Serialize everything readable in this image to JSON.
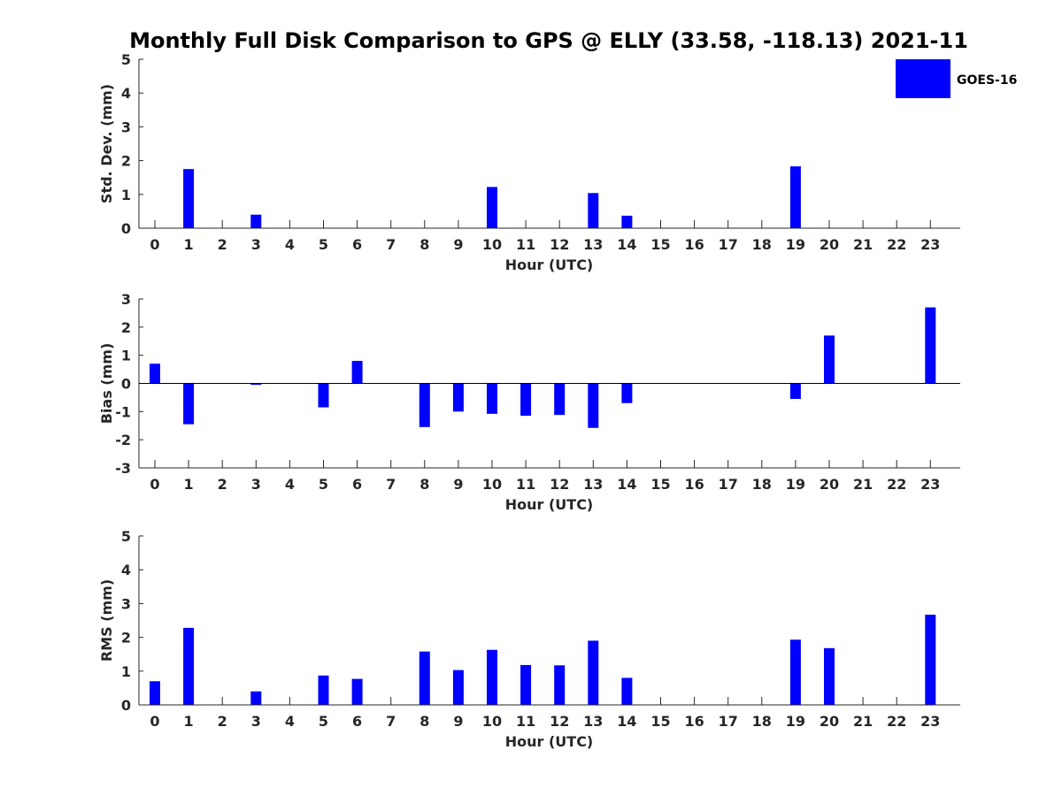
{
  "title": "Monthly Full Disk Comparison to GPS @ ELLY (33.58, -118.13) 2021-11",
  "legend": {
    "label": "GOES-16",
    "color": "#0000ff"
  },
  "bar_color": "#0000ff",
  "chart_data": [
    {
      "type": "bar",
      "name": "std-dev",
      "xlabel": "Hour (UTC)",
      "ylabel": "Std. Dev. (mm)",
      "ylim": [
        0,
        5
      ],
      "yticks": [
        0,
        1,
        2,
        3,
        4,
        5
      ],
      "categories": [
        "0",
        "1",
        "2",
        "3",
        "4",
        "5",
        "6",
        "7",
        "8",
        "9",
        "10",
        "11",
        "12",
        "13",
        "14",
        "15",
        "16",
        "17",
        "18",
        "19",
        "20",
        "21",
        "22",
        "23"
      ],
      "series": [
        {
          "name": "GOES-16",
          "values": [
            null,
            1.75,
            null,
            0.4,
            null,
            null,
            null,
            null,
            null,
            null,
            1.22,
            null,
            null,
            1.04,
            0.37,
            null,
            null,
            null,
            null,
            1.83,
            null,
            null,
            null,
            null
          ]
        }
      ]
    },
    {
      "type": "bar",
      "name": "bias",
      "xlabel": "Hour (UTC)",
      "ylabel": "Bias (mm)",
      "ylim": [
        -3,
        3
      ],
      "yticks": [
        -3,
        -2,
        -1,
        0,
        1,
        2,
        3
      ],
      "categories": [
        "0",
        "1",
        "2",
        "3",
        "4",
        "5",
        "6",
        "7",
        "8",
        "9",
        "10",
        "11",
        "12",
        "13",
        "14",
        "15",
        "16",
        "17",
        "18",
        "19",
        "20",
        "21",
        "22",
        "23"
      ],
      "series": [
        {
          "name": "GOES-16",
          "values": [
            0.7,
            -1.45,
            null,
            -0.05,
            null,
            -0.85,
            0.8,
            null,
            -1.55,
            -1.0,
            -1.08,
            -1.15,
            -1.12,
            -1.58,
            -0.7,
            null,
            null,
            null,
            null,
            -0.55,
            1.7,
            null,
            null,
            2.7
          ]
        }
      ]
    },
    {
      "type": "bar",
      "name": "rms",
      "xlabel": "Hour (UTC)",
      "ylabel": "RMS (mm)",
      "ylim": [
        0,
        5
      ],
      "yticks": [
        0,
        1,
        2,
        3,
        4,
        5
      ],
      "categories": [
        "0",
        "1",
        "2",
        "3",
        "4",
        "5",
        "6",
        "7",
        "8",
        "9",
        "10",
        "11",
        "12",
        "13",
        "14",
        "15",
        "16",
        "17",
        "18",
        "19",
        "20",
        "21",
        "22",
        "23"
      ],
      "series": [
        {
          "name": "GOES-16",
          "values": [
            0.7,
            2.28,
            null,
            0.4,
            null,
            0.87,
            0.77,
            null,
            1.58,
            1.03,
            1.63,
            1.18,
            1.17,
            1.9,
            0.8,
            null,
            null,
            null,
            null,
            1.93,
            1.68,
            null,
            null,
            2.67
          ]
        }
      ]
    }
  ]
}
